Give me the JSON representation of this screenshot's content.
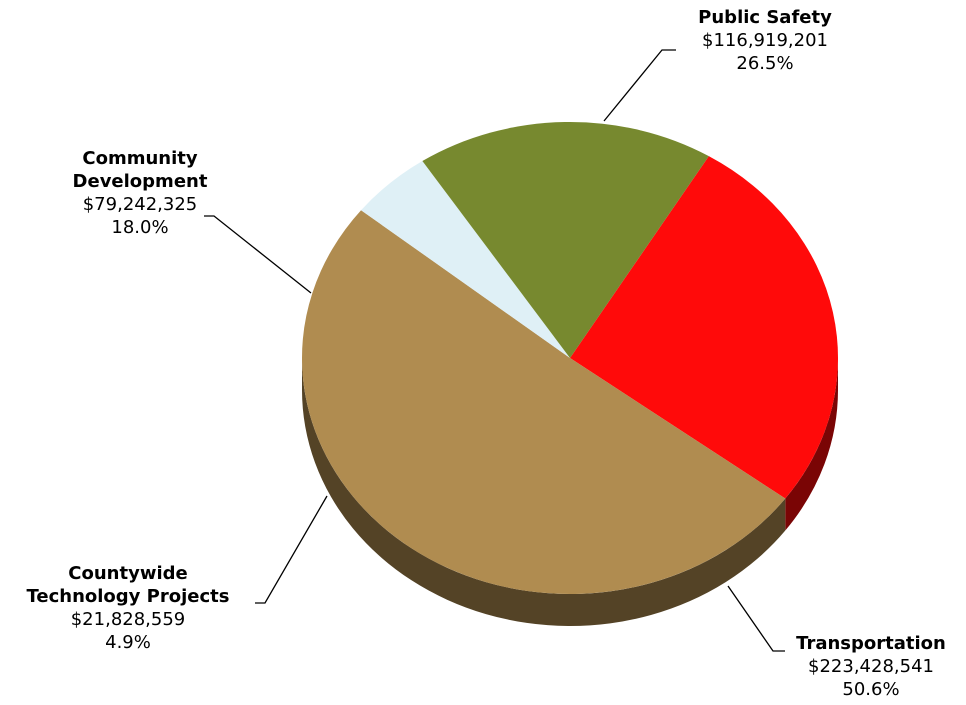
{
  "chart_data": {
    "type": "pie",
    "style": "3d",
    "title": "",
    "slices": [
      {
        "name": "Public Safety",
        "amount": "$116,919,201",
        "value": 116919201,
        "percent": "26.5%",
        "color": "#ff0a0a"
      },
      {
        "name": "Transportation",
        "amount": "$223,428,541",
        "value": 223428541,
        "percent": "50.6%",
        "color": "#b08c50"
      },
      {
        "name": "Countywide Technology Projects",
        "name_lines": [
          "Countywide",
          "Technology Projects"
        ],
        "amount": "$21,828,559",
        "value": 21828559,
        "percent": "4.9%",
        "color": "#dff0f6"
      },
      {
        "name": "Community Development",
        "name_lines": [
          "Community",
          "Development"
        ],
        "amount": "$79,242,325",
        "value": 79242325,
        "percent": "18.0%",
        "color": "#77892f"
      }
    ]
  }
}
